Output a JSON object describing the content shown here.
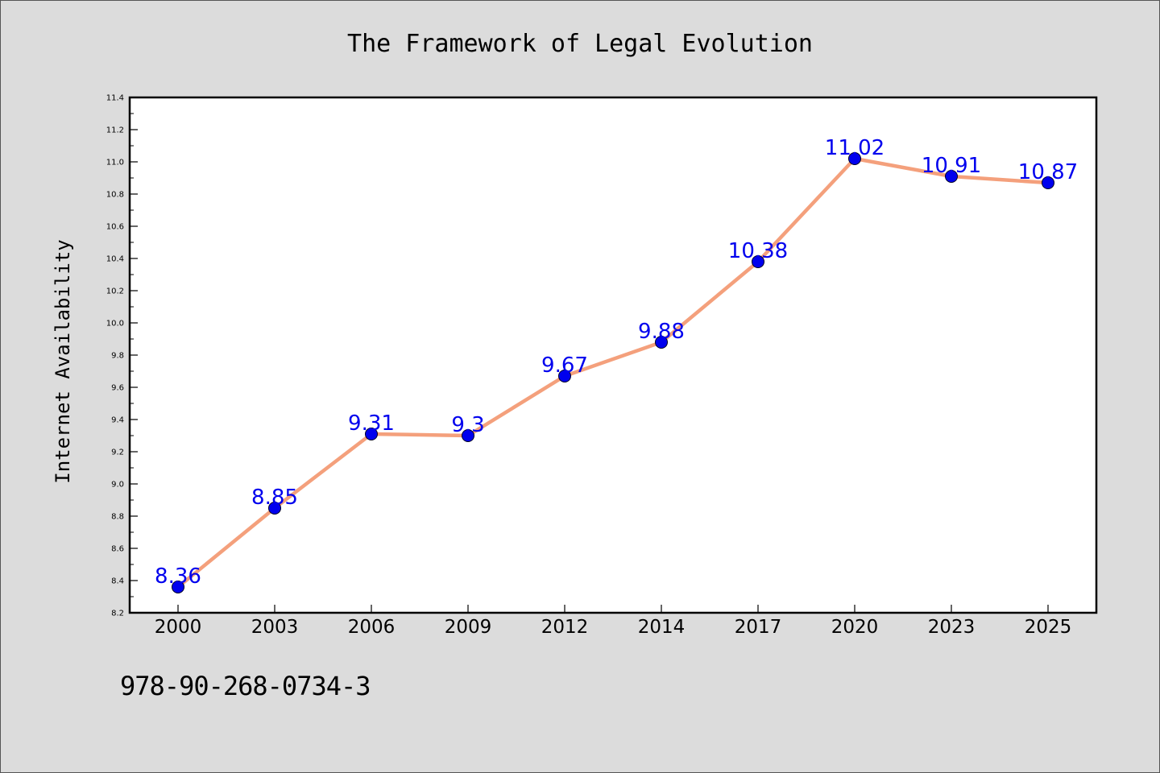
{
  "chart_data": {
    "type": "line",
    "title": "The Framework of Legal Evolution",
    "ylabel": "Internet Availability",
    "xlabel": "",
    "categories": [
      "2000",
      "2003",
      "2006",
      "2009",
      "2012",
      "2014",
      "2017",
      "2020",
      "2023",
      "2025"
    ],
    "series": [
      {
        "values": [
          8.36,
          8.85,
          9.31,
          9.3,
          9.67,
          9.88,
          10.38,
          11.02,
          10.91,
          10.87
        ],
        "data_labels": [
          "8.36",
          "8.85",
          "9.31",
          "9.3",
          "9.67",
          "9.88",
          "10.38",
          "11.02",
          "10.91",
          "10.87"
        ]
      }
    ],
    "ylim": [
      8.2,
      11.4
    ],
    "yticks": [
      "8.2",
      "8.4",
      "8.6",
      "8.8",
      "9.0",
      "9.2",
      "9.4",
      "9.6",
      "9.8",
      "10.0",
      "10.2",
      "10.4",
      "10.6",
      "10.8",
      "11.0",
      "11.2",
      "11.4"
    ],
    "grid": false,
    "colors": {
      "line": "#f4a07c",
      "marker": "#0000ee",
      "label": "#0000ee",
      "background": "#dcdcdc",
      "plot_background": "#ffffff"
    }
  },
  "footer": {
    "isbn": "978-90-268-0734-3"
  }
}
